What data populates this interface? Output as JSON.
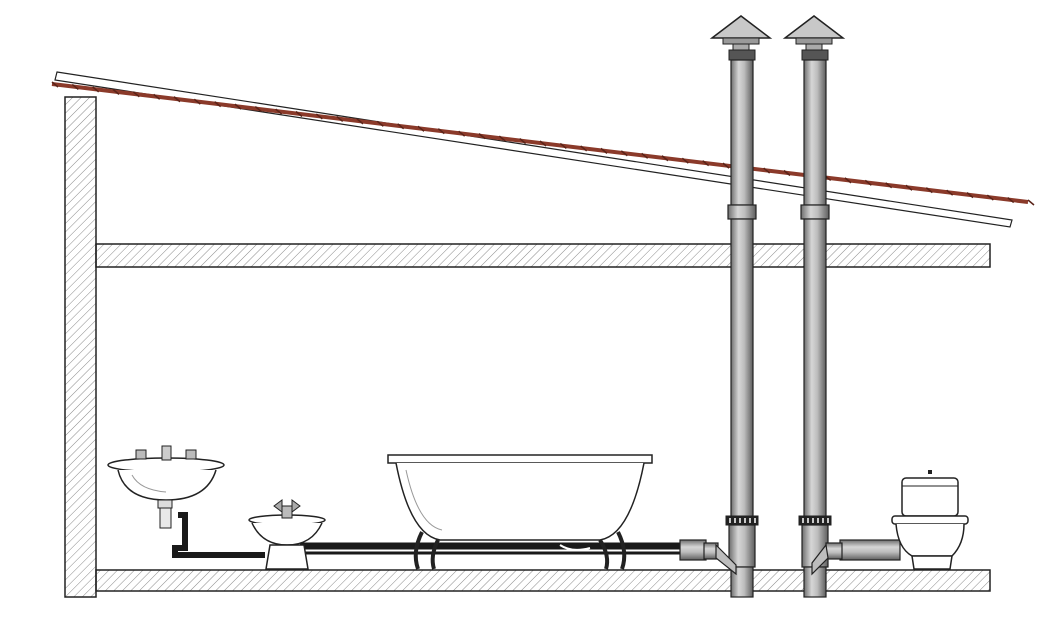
{
  "diagram": {
    "kind": "plumbing-section",
    "has_text": false,
    "colors": {
      "background": "#ffffff",
      "outline": "#222222",
      "hatch": "#8a8a8a",
      "roof_tile": "#8b3a2a",
      "pipe_light": "#d6d6d6",
      "pipe_dark": "#6e6e6e",
      "fixture_fill": "#ffffff",
      "drain_pipe": "#1a1a1a"
    },
    "elements": [
      "left-wall",
      "ceiling-slab",
      "floor-slab",
      "roof",
      "vent-stack-left",
      "vent-stack-right",
      "washbasin",
      "bidet",
      "bathtub",
      "toilet",
      "drain-pipe"
    ]
  }
}
